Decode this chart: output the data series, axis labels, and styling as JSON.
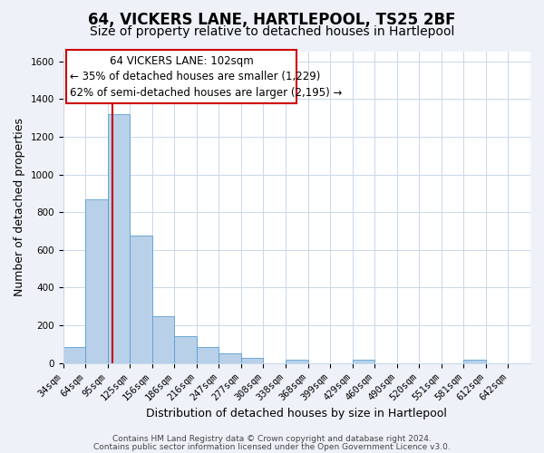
{
  "title": "64, VICKERS LANE, HARTLEPOOL, TS25 2BF",
  "subtitle": "Size of property relative to detached houses in Hartlepool",
  "xlabel": "Distribution of detached houses by size in Hartlepool",
  "ylabel": "Number of detached properties",
  "bin_labels": [
    "34sqm",
    "64sqm",
    "95sqm",
    "125sqm",
    "156sqm",
    "186sqm",
    "216sqm",
    "247sqm",
    "277sqm",
    "308sqm",
    "338sqm",
    "368sqm",
    "399sqm",
    "429sqm",
    "460sqm",
    "490sqm",
    "520sqm",
    "551sqm",
    "581sqm",
    "612sqm",
    "642sqm"
  ],
  "bar_heights": [
    85,
    870,
    1320,
    675,
    248,
    143,
    85,
    50,
    28,
    0,
    18,
    0,
    0,
    18,
    0,
    0,
    0,
    0,
    18,
    0,
    0
  ],
  "bar_color": "#b8d0e8",
  "bar_edge_color": "#5a9fd4",
  "ylim": [
    0,
    1650
  ],
  "yticks": [
    0,
    200,
    400,
    600,
    800,
    1000,
    1200,
    1400,
    1600
  ],
  "annotation_title": "64 VICKERS LANE: 102sqm",
  "annotation_line1": "← 35% of detached houses are smaller (1,229)",
  "annotation_line2": "62% of semi-detached houses are larger (2,195) →",
  "footer1": "Contains HM Land Registry data © Crown copyright and database right 2024.",
  "footer2": "Contains public sector information licensed under the Open Government Licence v3.0.",
  "bg_color": "#eef2f8",
  "plot_bg_color": "#ffffff",
  "grid_color": "#c8d8ea",
  "annotation_box_color": "#ffffff",
  "annotation_box_edge": "#cc0000",
  "red_line_color": "#cc0000",
  "title_fontsize": 12,
  "subtitle_fontsize": 10,
  "axis_label_fontsize": 9,
  "tick_fontsize": 7.5,
  "annotation_fontsize": 8.5,
  "footer_fontsize": 6.5
}
